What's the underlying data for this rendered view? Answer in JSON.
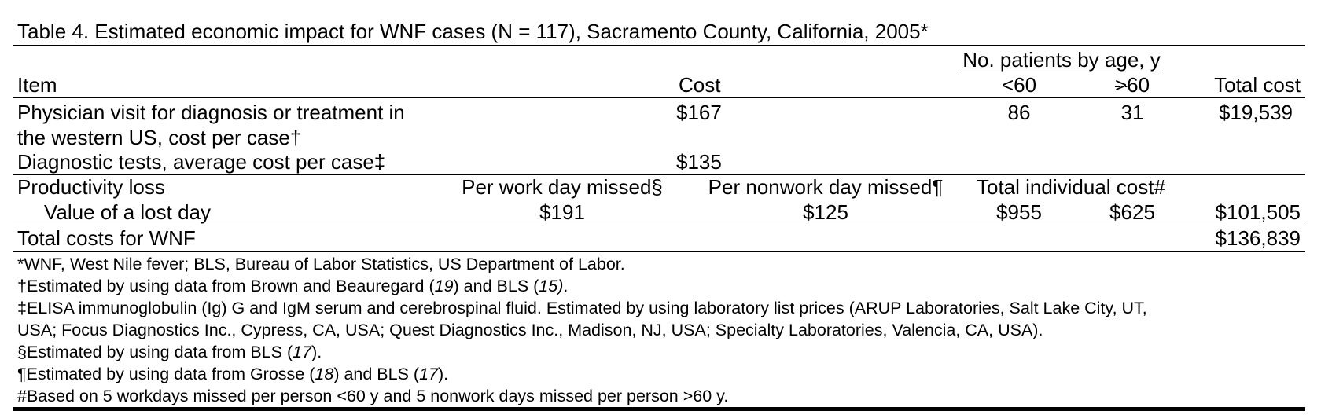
{
  "title": "Table 4. Estimated economic impact for WNF cases (N = 117), Sacramento County, California, 2005*",
  "header": {
    "group_label": "No. patients by age, y",
    "item": "Item",
    "cost": "Cost",
    "age_lt60": "<60",
    "age_ge60": ">60",
    "total_cost": "Total cost"
  },
  "rows": {
    "physician": {
      "item_line1": "Physician visit for diagnosis or treatment in",
      "item_line2": "the western US, cost per case†",
      "cost": "$167",
      "lt60": "86",
      "ge60": "31",
      "total": "$19,539"
    },
    "diagnostic": {
      "item": "Diagnostic tests, average cost per case‡",
      "cost": "$135"
    },
    "productivity": {
      "item": "Productivity loss",
      "work_day": "Per work day missed§",
      "nonwork_day": "Per nonwork day missed¶",
      "individual": "Total individual cost#"
    },
    "lost_day": {
      "item": "Value of a lost day",
      "work": "$191",
      "nonwork": "$125",
      "lt60": "$955",
      "ge60": "$625",
      "total": "$101,505"
    },
    "total": {
      "item": "Total costs for WNF",
      "total": "$136,839"
    }
  },
  "footnotes": {
    "f1": "*WNF, West Nile fever; BLS, Bureau of Labor Statistics, US Department of Labor.",
    "f2_a": "†Estimated by using data from Brown and Beauregard (",
    "f2_ref1": "19",
    "f2_b": ") and BLS (",
    "f2_ref2": "15)",
    "f2_c": ".",
    "f3_line1": "‡ELISA immunoglobulin (Ig) G and IgM serum and cerebrospinal fluid. Estimated by using laboratory list prices (ARUP Laboratories, Salt Lake City, UT,",
    "f3_line2": "USA; Focus Diagnostics Inc., Cypress, CA, USA; Quest Diagnostics Inc., Madison, NJ, USA; Specialty Laboratories, Valencia, CA, USA).",
    "f4_a": "§Estimated by using data from BLS (",
    "f4_ref": "17",
    "f4_b": ").",
    "f5_a": "¶Estimated by using data from Grosse (",
    "f5_ref1": "18",
    "f5_b": ") and BLS (",
    "f5_ref2": "17",
    "f5_c": ").",
    "f6": "#Based on 5 workdays missed per person <60 y and 5 nonwork days missed per person >60 y."
  }
}
